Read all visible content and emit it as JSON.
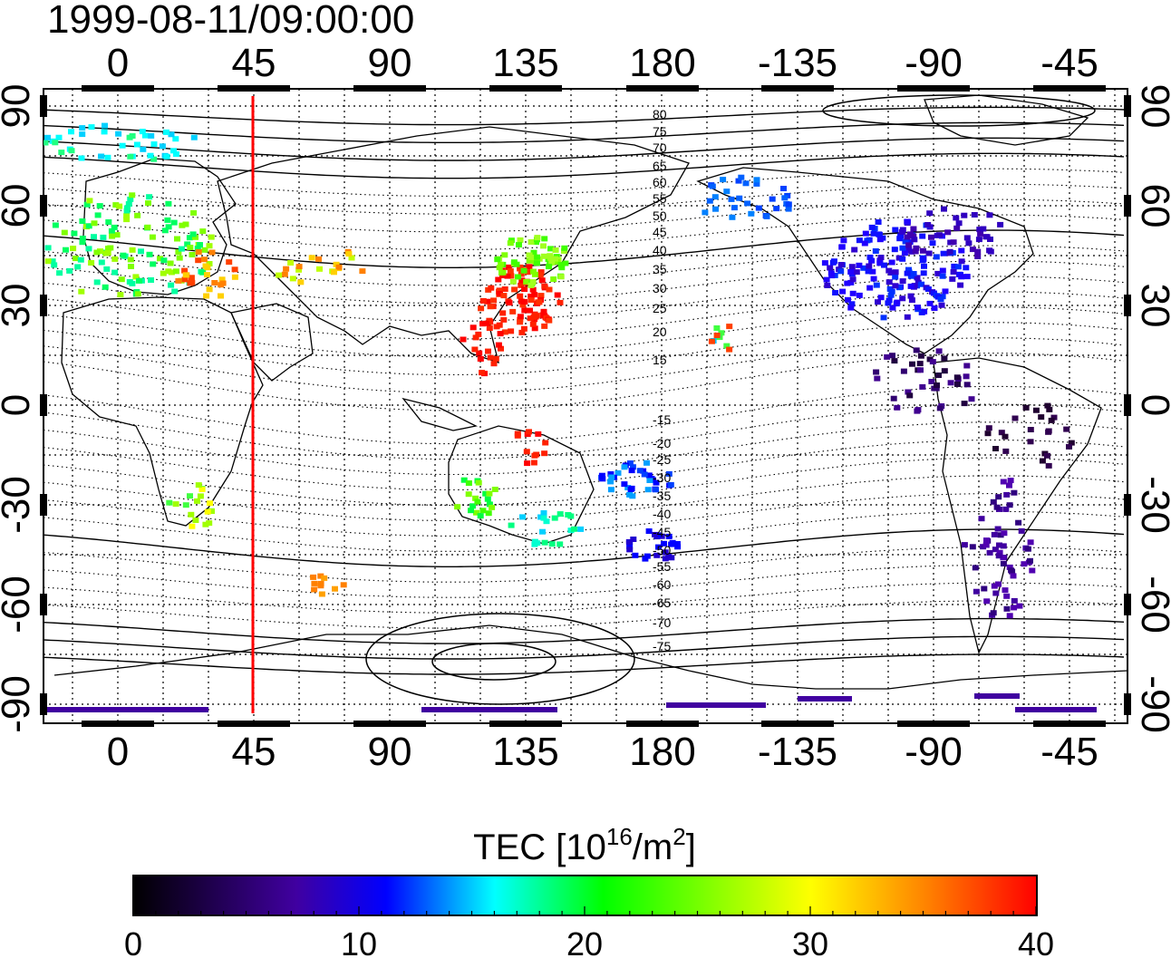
{
  "title": "1999-08-11/09:00:00",
  "map": {
    "x_ticks_top": [
      "0",
      "45",
      "90",
      "135",
      "180",
      "-135",
      "-90",
      "-45"
    ],
    "x_ticks_bottom": [
      "0",
      "45",
      "90",
      "135",
      "180",
      "-135",
      "-90",
      "-45"
    ],
    "y_ticks": [
      "90",
      "60",
      "30",
      "0",
      "-30",
      "-60",
      "-90"
    ],
    "lon_range": [
      -25,
      335
    ],
    "lat_range": [
      -95,
      92
    ],
    "marker_longitude": 45,
    "marker_color": "#ff0000",
    "contour_labels": [
      "80",
      "75",
      "70",
      "65",
      "60",
      "55",
      "50",
      "45",
      "40",
      "35",
      "30",
      "25",
      "20",
      "15",
      "-15",
      "-20",
      "-25",
      "-30",
      "-35",
      "-40",
      "-45",
      "-50",
      "-55",
      "-60",
      "-65",
      "-70",
      "-75"
    ]
  },
  "colorbar": {
    "label": "TEC  [10",
    "label_sup": "16",
    "label_unit": "/m",
    "label_sup2": "2",
    "label_end": "]",
    "ticks": [
      "0",
      "10",
      "20",
      "30",
      "40"
    ],
    "range": [
      0,
      40
    ],
    "colors": [
      "#000000",
      "#4000a0",
      "#0000ff",
      "#00ffff",
      "#00ff00",
      "#ffff00",
      "#ff8000",
      "#ff0000"
    ]
  }
}
